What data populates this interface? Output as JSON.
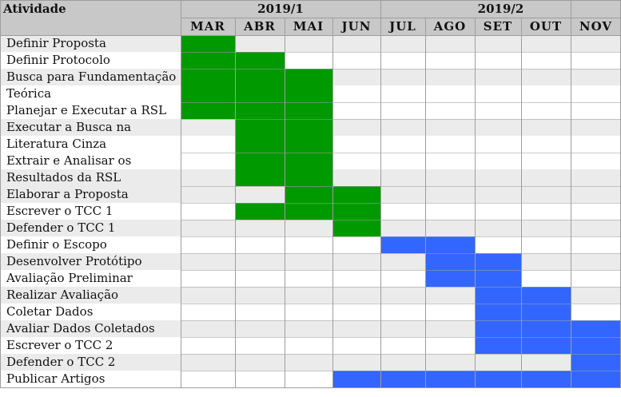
{
  "header": {
    "activity_label": "Atividade",
    "semesters": [
      {
        "label": "2019/1",
        "start": 0,
        "end": 4
      },
      {
        "label": "2019/2",
        "start": 4,
        "end": 9
      }
    ],
    "months": [
      "MAR",
      "ABR",
      "MAI",
      "JUN",
      "JUL",
      "AGO",
      "SET",
      "OUT",
      "NOV"
    ]
  },
  "colors": {
    "semester1": "#009900",
    "semester2": "#3366ff",
    "row_alt": "#ebebeb",
    "header_bg": "#c8c8c8",
    "grid": "#9e9e9e"
  },
  "rows": [
    {
      "lines": [
        "Definir Proposta"
      ],
      "green": [
        0
      ],
      "blue": []
    },
    {
      "lines": [
        "Definir Protocolo"
      ],
      "green": [
        0,
        1
      ],
      "blue": []
    },
    {
      "lines": [
        "Busca para Fundamentação",
        "Teórica"
      ],
      "green": [
        0,
        1,
        2
      ],
      "blue": []
    },
    {
      "lines": [
        "Planejar e Executar a RSL"
      ],
      "green": [
        0,
        1,
        2
      ],
      "blue": []
    },
    {
      "lines": [
        "Executar a Busca na",
        "Literatura Cinza"
      ],
      "green": [
        1,
        2
      ],
      "blue": []
    },
    {
      "lines": [
        "Extrair e Analisar os",
        "Resultados da RSL"
      ],
      "green": [
        1,
        2
      ],
      "blue": []
    },
    {
      "lines": [
        "Elaborar a Proposta"
      ],
      "green": [
        2,
        3
      ],
      "blue": []
    },
    {
      "lines": [
        "Escrever o TCC 1"
      ],
      "green": [
        1,
        2,
        3
      ],
      "blue": []
    },
    {
      "lines": [
        "Defender o TCC 1"
      ],
      "green": [
        3
      ],
      "blue": []
    },
    {
      "lines": [
        "Definir o Escopo"
      ],
      "green": [],
      "blue": [
        4,
        5
      ]
    },
    {
      "lines": [
        "Desenvolver Protótipo"
      ],
      "green": [],
      "blue": [
        5,
        6
      ]
    },
    {
      "lines": [
        "Avaliação Preliminar"
      ],
      "green": [],
      "blue": [
        5,
        6
      ]
    },
    {
      "lines": [
        "Realizar Avaliação"
      ],
      "green": [],
      "blue": [
        6,
        7
      ]
    },
    {
      "lines": [
        "Coletar Dados"
      ],
      "green": [],
      "blue": [
        6,
        7
      ]
    },
    {
      "lines": [
        "Avaliar Dados Coletados"
      ],
      "green": [],
      "blue": [
        6,
        7,
        8
      ]
    },
    {
      "lines": [
        "Escrever o TCC 2"
      ],
      "green": [],
      "blue": [
        6,
        7,
        8
      ]
    },
    {
      "lines": [
        "Defender o TCC 2"
      ],
      "green": [],
      "blue": [
        8
      ]
    },
    {
      "lines": [
        "Publicar Artigos"
      ],
      "green": [],
      "blue": [
        3,
        4,
        5,
        6,
        7,
        8
      ]
    }
  ]
}
